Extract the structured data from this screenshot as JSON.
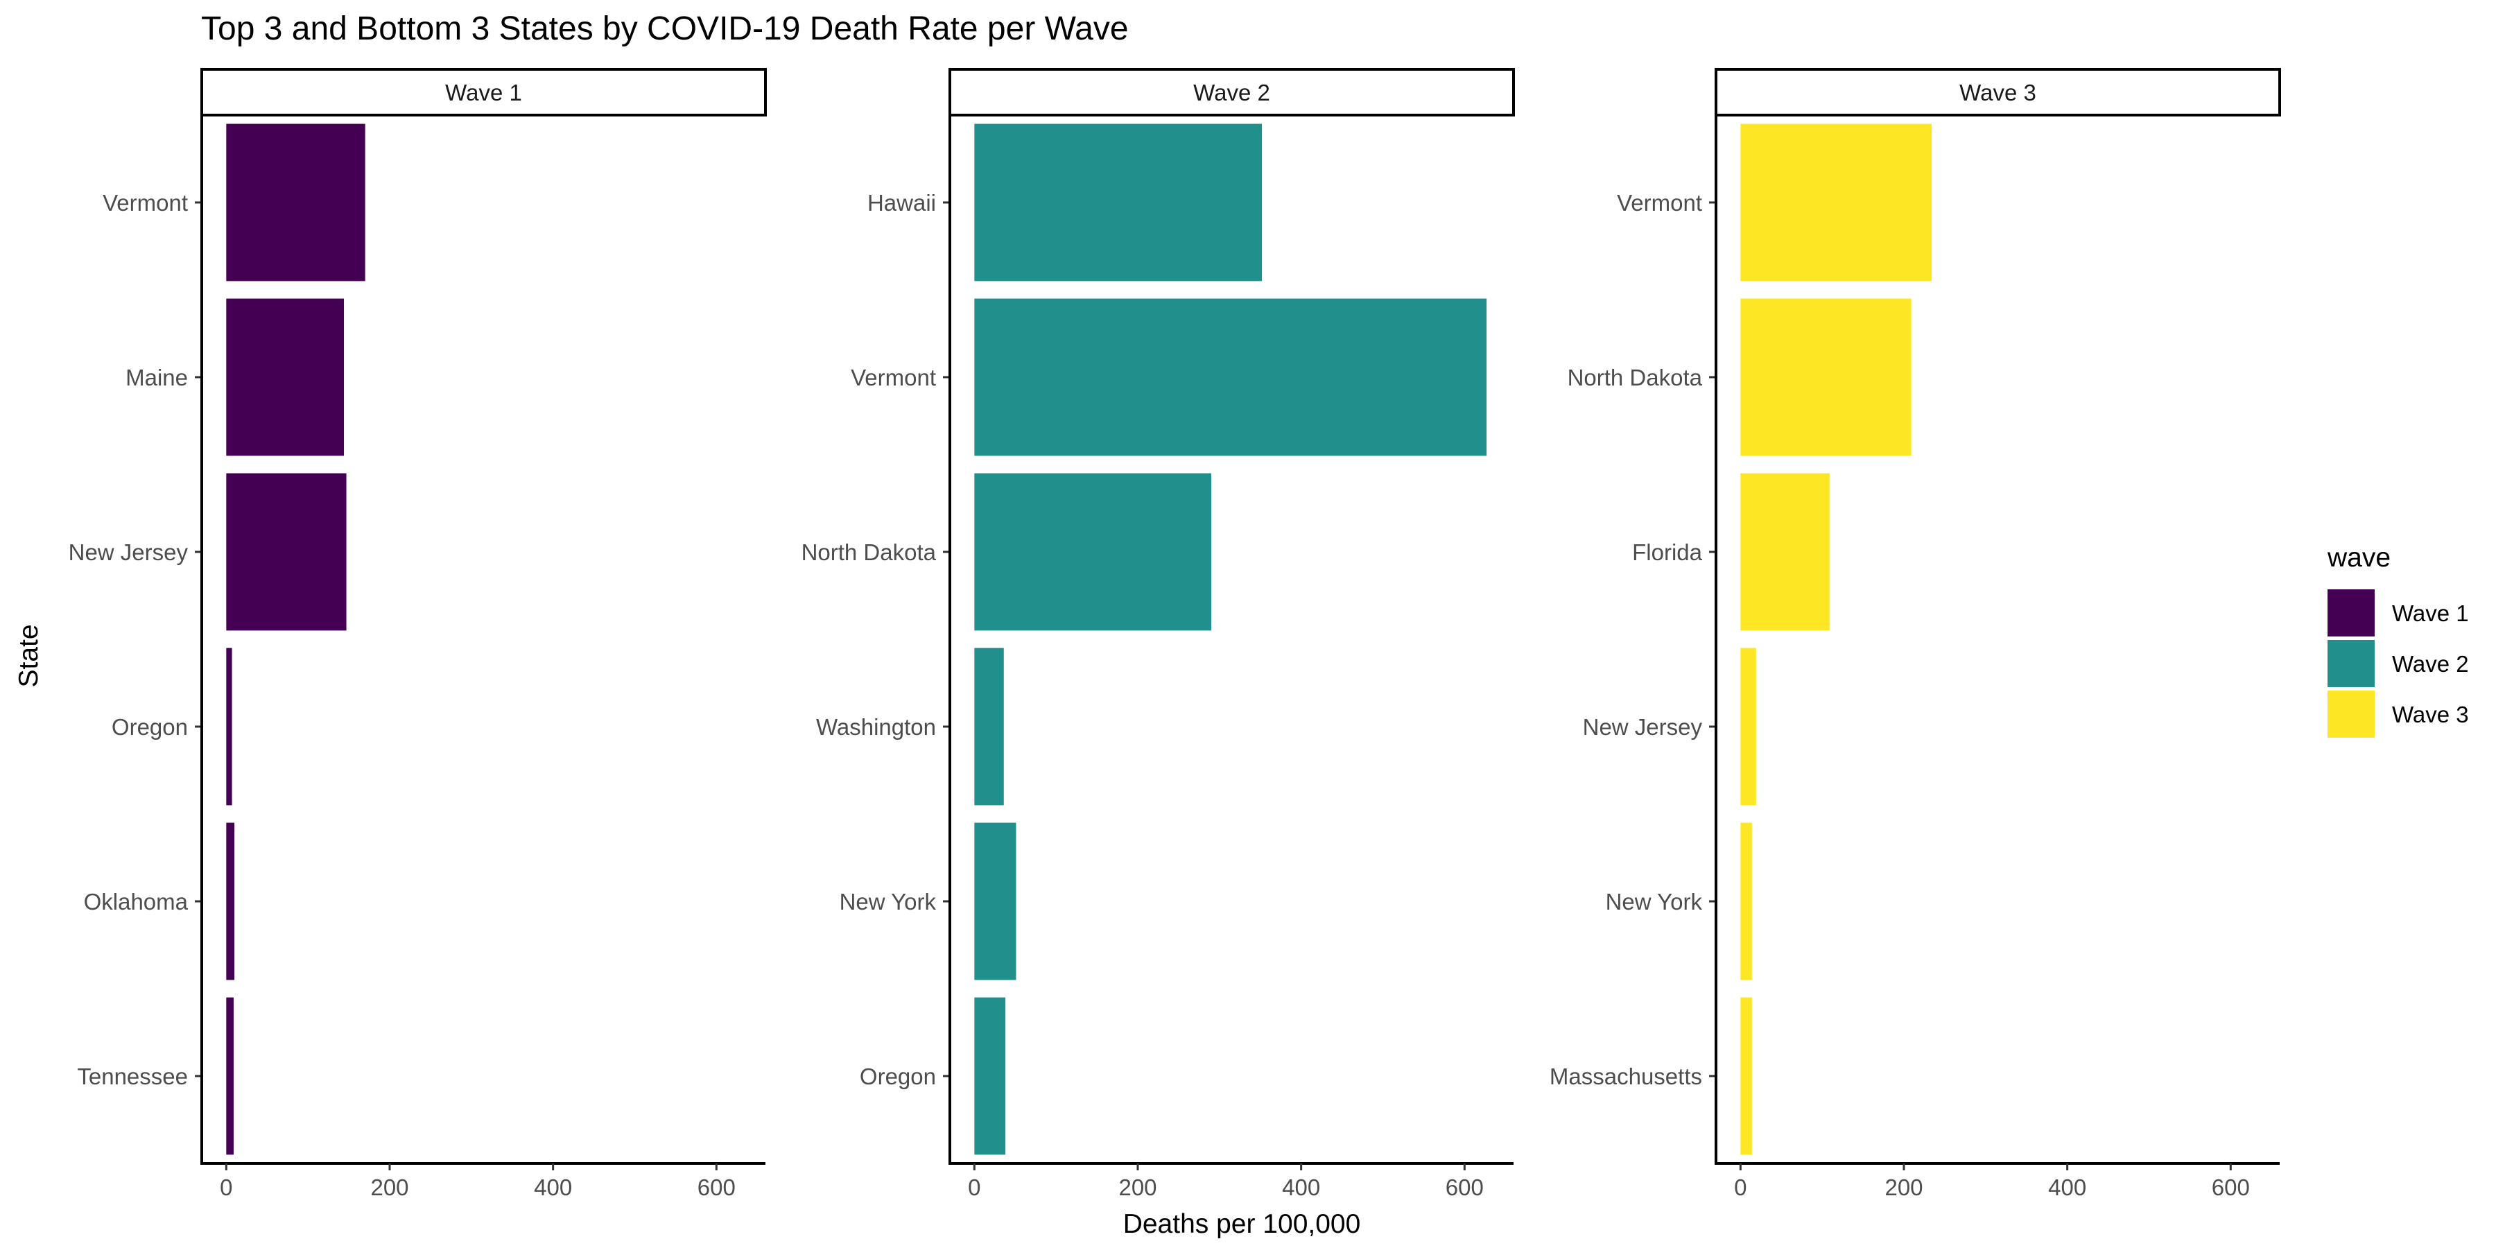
{
  "chart_data": {
    "type": "bar",
    "orientation": "horizontal",
    "title": "Top 3 and Bottom 3 States by COVID-19 Death Rate per Wave",
    "xlabel": "Deaths per 100,000",
    "ylabel": "State",
    "xlim": [
      -30,
      660
    ],
    "x_ticks": [
      0,
      200,
      400,
      600
    ],
    "grid": false,
    "legend": {
      "title": "wave",
      "position": "right",
      "entries": [
        {
          "label": "Wave 1",
          "color": "#440154"
        },
        {
          "label": "Wave 2",
          "color": "#21908C"
        },
        {
          "label": "Wave 3",
          "color": "#FDE725"
        }
      ]
    },
    "facets": [
      {
        "label": "Wave 1",
        "color": "#440154",
        "categories": [
          "Vermont",
          "Maine",
          "New Jersey",
          "Oregon",
          "Oklahoma",
          "Tennessee"
        ],
        "values": [
          170,
          144,
          147,
          7,
          10,
          9
        ]
      },
      {
        "label": "Wave 2",
        "color": "#21908C",
        "categories": [
          "Hawaii",
          "Vermont",
          "North Dakota",
          "Washington",
          "New York",
          "Oregon"
        ],
        "values": [
          352,
          627,
          290,
          36,
          51,
          38
        ]
      },
      {
        "label": "Wave 3",
        "color": "#FDE725",
        "categories": [
          "Vermont",
          "North Dakota",
          "Florida",
          "New Jersey",
          "New York",
          "Massachusetts"
        ],
        "values": [
          234,
          209,
          109,
          19,
          14,
          14
        ]
      }
    ]
  }
}
